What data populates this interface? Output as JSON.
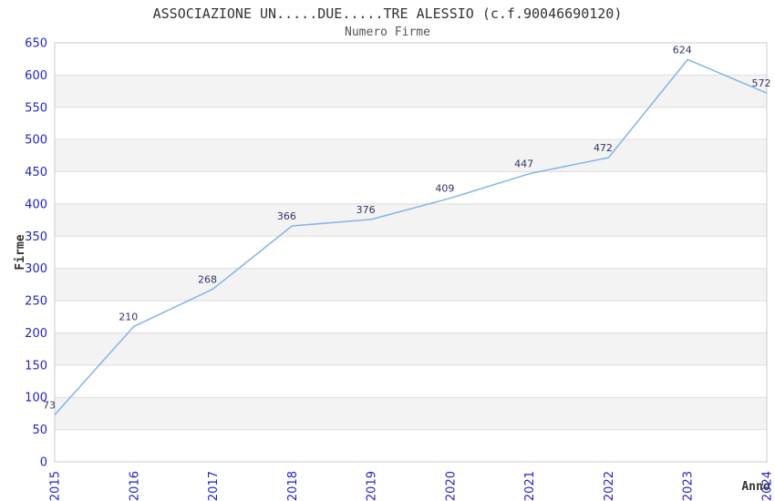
{
  "header": {
    "title": "ASSOCIAZIONE UN.....DUE.....TRE ALESSIO (c.f.90046690120)",
    "subtitle": "Numero Firme"
  },
  "chart_data": {
    "type": "line",
    "title": "ASSOCIAZIONE UN.....DUE.....TRE ALESSIO (c.f.90046690120)",
    "subtitle": "Numero Firme",
    "xlabel": "Anno",
    "ylabel": "Firme",
    "categories": [
      "2015",
      "2016",
      "2017",
      "2018",
      "2019",
      "2020",
      "2021",
      "2022",
      "2023",
      "2024"
    ],
    "values": [
      73,
      210,
      268,
      366,
      376,
      409,
      447,
      472,
      624,
      572
    ],
    "ylim": [
      0,
      650
    ],
    "ytick_step": 50,
    "grid": true,
    "bands_alternating": true,
    "legend": "none",
    "x_tick_rotation": -90,
    "colors": {
      "line": "#85b3e8",
      "tick_label": "#2222cc",
      "data_label": "#333366",
      "band": "#f3f3f3",
      "grid": "#dddddd",
      "border": "#cccccc",
      "title": "#333333",
      "subtitle": "#555555",
      "axis_label": "#333333",
      "background": "#ffffff"
    }
  }
}
